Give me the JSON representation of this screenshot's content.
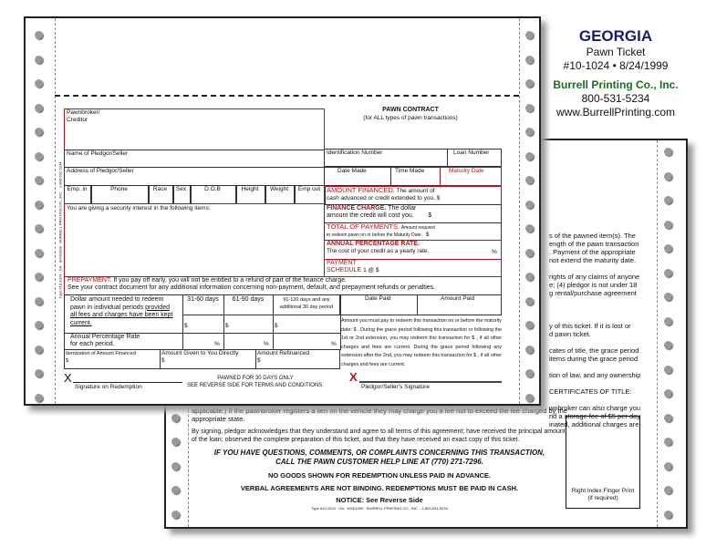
{
  "info": {
    "state": "GEORGIA",
    "product": "Pawn Ticket",
    "form_id": "#10-1024 • 8/24/1999",
    "company": "Burrell Printing Co., Inc.",
    "phone": "800-531-5234",
    "website": "www.BurrellPrinting.com"
  },
  "colors": {
    "state": "#1a1a6e",
    "company": "#1e6b22",
    "form_red": "#b3141b"
  },
  "front": {
    "side_imprint": "Type #10-1024 · GA · 8/24/1999 · BURRELL PRINTING CO., INC. · 1-800-531-5234",
    "title": "PAWN CONTRACT",
    "subtitle": "(for ALL types of pawn transactions)",
    "pawnbroker": "Pawnbroker/",
    "creditor": "Creditor",
    "name": "Name of Pledgor/Seller",
    "address": "Address of Pledgor/Seller",
    "id_number": "Identification Number",
    "loan_number": "Loan Number",
    "date_made": "Date Made",
    "time_made": "Time Made",
    "maturity_date": "Maturity Date",
    "emp_cols": [
      "Emp. in",
      "Phone",
      "Race",
      "Sex",
      "D.O.B",
      "Height",
      "Weight",
      "Emp out"
    ],
    "items": "You are giving a security interest in the following items:",
    "amount_financed_title": "AMOUNT FINANCED.",
    "amount_financed_text1": "The amount of",
    "amount_financed_text2": "cash advanced or credit extended to you. $",
    "finance_charge_title": "FINANCE CHARGE.",
    "finance_charge_text1": "The dollar",
    "finance_charge_text2": "amount the credit will cost you.",
    "dollar": "$",
    "total_title": "TOTAL OF PAYMENTS.",
    "total_text1": "Amount required",
    "total_text2": "to redeem pawn on or before the Maturity Date.",
    "apr_title": "ANNUAL PERCENTAGE RATE.",
    "apr_text": "The cost of your credit as a yearly rate.",
    "percent": "%",
    "schedule_title1": "PAYMENT",
    "schedule_title2": "SCHEDULE",
    "schedule_text": "1 @  $",
    "prepay_title": "PREPAYMENT:",
    "prepay_text1": "If you pay off early, you will not be entitled to a refund of part of the finance charge.",
    "prepay_text2": "See your contract document for any additional information concerning non-payment, default, and prepayment refunds or penalties.",
    "redeem_text1": "Dollar amount needed to redeem",
    "redeem_text2": "pawn in individual periods",
    "redeem_text3": "provided",
    "redeem_text4": "all fees and charges have been kept",
    "redeem_text5": "current.",
    "period1": "31-60 days",
    "period2": "61-90 days",
    "period3": "91-120 days and any additional 30 day period",
    "date_paid": "Date Paid",
    "amount_paid": "Amount Paid",
    "apr_period1": "Annual Percentage Rate",
    "apr_period2": "for each period.",
    "itemization": "Itemization of Amount Financed",
    "given_directly": "Amount Given to You Directly",
    "refinanced": "Amount Refinanced",
    "grace_text": "Amount you must pay to redeem this transaction on or before the maturity date: $ . During the grace period following this transaction or following the 1st or 2nd extension, you may redeem this transaction for $ , if all other charges and fees are current. During the grace period following any extension after the 2nd, you may redeem this transaction for $ , if all other charges and fees are current.",
    "x_mark": "X",
    "sig_redemption": "Signature on Redemption",
    "pawned_days": "PAWNED FOR 30 DAYS ONLY",
    "see_reverse": "SEE REVERSE SIDE FOR TERMS AND CONDITIONS.",
    "sig_pledgor": "Pledgor/Seller's Signature"
  },
  "back": {
    "lines": [
      "s of the pawned item(s).  The",
      "ength of the pawn transaction",
      ".  Payment of the appropriate",
      " not extend the maturity date.",
      "",
      "rights of any claims of anyone",
      "e; (4) pledgor is not under 18",
      "g rental/purchase agreement",
      "",
      "",
      "",
      "y of this ticket.  If it is lost or",
      "d pawn ticket.",
      "",
      "cates of title, the grace period",
      " items during the grace period",
      "",
      "tion of law, and any ownership",
      "",
      "CERTIFICATES OF TITLE:",
      "",
      "wnbroker can also charge you",
      "nd a storage fee of $5 per day",
      "inated, additional charges are"
    ],
    "lien_text": "applicable.) If the pawnbroker registers a lien on the vehicle they may charge you a fee not to exceed the fee charged by the appropriate state.",
    "signing_text": "By signing, pledgor acknowledges that they understand and agree to all terms of this agreement; have received the principal amount of the loan; observed the complete preparation of this ticket, and that they have received an exact copy of this ticket.",
    "helpline1": "IF YOU HAVE QUESTIONS, COMMENTS, OR COMPLAINTS CONCERNING THIS TRANSACTION,",
    "helpline2": "CALL THE PAWN CUSTOMER HELP LINE AT (770) 271-7296.",
    "no_goods": "NO GOODS SHOWN FOR REDEMPTION UNLESS PAID IN ADVANCE.",
    "verbal": "VERBAL AGREEMENTS ARE NOT BINDING.  REDEMPTIONS MUST BE PAID IN CASH.",
    "notice": "NOTICE: See Reverse Side",
    "imprint": "Type #10-1024 · GA · 8/24/1999 · BURRELL PRINTING CO., INC. · 1-800-531-5234",
    "fingerprint1": "Right Index Finger Print",
    "fingerprint2": "(if required)"
  }
}
